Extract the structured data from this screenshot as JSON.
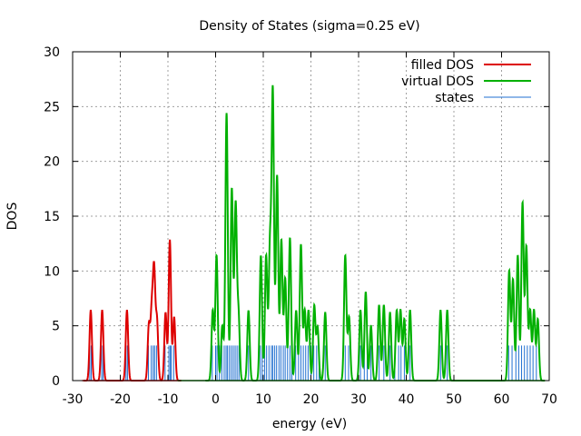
{
  "chart_data": {
    "type": "line",
    "title": "Density of States (sigma=0.25 eV)",
    "xlabel": "energy (eV)",
    "ylabel": "DOS",
    "xlim": [
      -30,
      70
    ],
    "ylim": [
      0,
      30
    ],
    "x_ticks": [
      "-30",
      "-20",
      "-10",
      "0",
      "10",
      "20",
      "30",
      "40",
      "50",
      "60",
      "70"
    ],
    "y_ticks": [
      "0",
      "5",
      "10",
      "15",
      "20",
      "25",
      "30"
    ],
    "grid": true,
    "legend_position": "top-right",
    "colors": {
      "filled": "#dd0000",
      "virtual": "#00b000",
      "states": "#1f6fd0"
    },
    "series": [
      {
        "name": "filled DOS",
        "kind": "dos",
        "peaks": [
          [
            -26.2,
            6.4
          ],
          [
            -23.8,
            6.4
          ],
          [
            -18.6,
            6.4
          ],
          [
            -14.0,
            5.0
          ],
          [
            -13.4,
            6.0
          ],
          [
            -12.9,
            9.7
          ],
          [
            -12.3,
            5.4
          ],
          [
            -10.5,
            6.2
          ],
          [
            -9.6,
            12.8
          ],
          [
            -8.7,
            5.8
          ]
        ]
      },
      {
        "name": "virtual DOS",
        "kind": "dos",
        "peaks": [
          [
            -0.6,
            6.4
          ],
          [
            0.2,
            11.4
          ],
          [
            1.4,
            5.0
          ],
          [
            2.3,
            24.4
          ],
          [
            3.4,
            17.5
          ],
          [
            4.2,
            16.0
          ],
          [
            4.8,
            6.0
          ],
          [
            6.9,
            6.4
          ],
          [
            9.5,
            11.4
          ],
          [
            10.6,
            11.4
          ],
          [
            11.4,
            12.0
          ],
          [
            12.0,
            26.2
          ],
          [
            12.9,
            18.7
          ],
          [
            13.8,
            12.8
          ],
          [
            14.6,
            9.3
          ],
          [
            15.6,
            13.0
          ],
          [
            16.9,
            6.4
          ],
          [
            17.9,
            12.4
          ],
          [
            18.7,
            6.4
          ],
          [
            19.5,
            6.4
          ],
          [
            20.7,
            6.8
          ],
          [
            21.4,
            4.8
          ],
          [
            23.0,
            6.2
          ],
          [
            27.2,
            11.4
          ],
          [
            28.0,
            5.8
          ],
          [
            30.4,
            6.4
          ],
          [
            31.5,
            8.1
          ],
          [
            32.6,
            5.0
          ],
          [
            34.3,
            6.9
          ],
          [
            35.3,
            6.9
          ],
          [
            36.6,
            6.2
          ],
          [
            38.0,
            6.4
          ],
          [
            38.8,
            6.4
          ],
          [
            39.6,
            5.6
          ],
          [
            40.8,
            6.4
          ],
          [
            47.2,
            6.4
          ],
          [
            48.6,
            6.4
          ],
          [
            61.6,
            10.0
          ],
          [
            62.4,
            9.2
          ],
          [
            63.4,
            11.4
          ],
          [
            64.4,
            16.2
          ],
          [
            65.2,
            12.2
          ],
          [
            66.0,
            6.4
          ],
          [
            66.8,
            6.4
          ],
          [
            67.6,
            5.6
          ]
        ]
      },
      {
        "name": "states",
        "kind": "impulses",
        "filled_levels": [
          -26.4,
          -26.1,
          -23.9,
          -23.6,
          -18.8,
          -18.5,
          -14.1,
          -13.5,
          -13.1,
          -12.8,
          -12.4,
          -10.6,
          -9.8,
          -9.5,
          -9.3,
          -8.8
        ],
        "virtual_levels": [
          -0.7,
          0.0,
          0.3,
          0.8,
          1.3,
          1.8,
          2.2,
          2.5,
          2.9,
          3.3,
          3.7,
          4.1,
          4.5,
          4.9,
          6.9,
          9.4,
          9.8,
          10.3,
          10.7,
          11.2,
          11.7,
          12.0,
          12.4,
          12.8,
          13.3,
          13.7,
          14.2,
          14.6,
          15.1,
          15.6,
          16.0,
          16.8,
          17.4,
          17.9,
          18.4,
          18.9,
          19.4,
          20.0,
          20.6,
          21.2,
          21.7,
          23.0,
          27.2,
          27.9,
          30.4,
          31.2,
          31.8,
          32.6,
          34.3,
          35.3,
          36.6,
          37.6,
          38.4,
          38.9,
          39.6,
          40.8,
          47.2,
          48.6,
          61.5,
          62.2,
          63.0,
          63.6,
          64.2,
          64.8,
          65.4,
          66.0,
          66.6,
          67.3
        ],
        "height": 3.2
      }
    ]
  }
}
